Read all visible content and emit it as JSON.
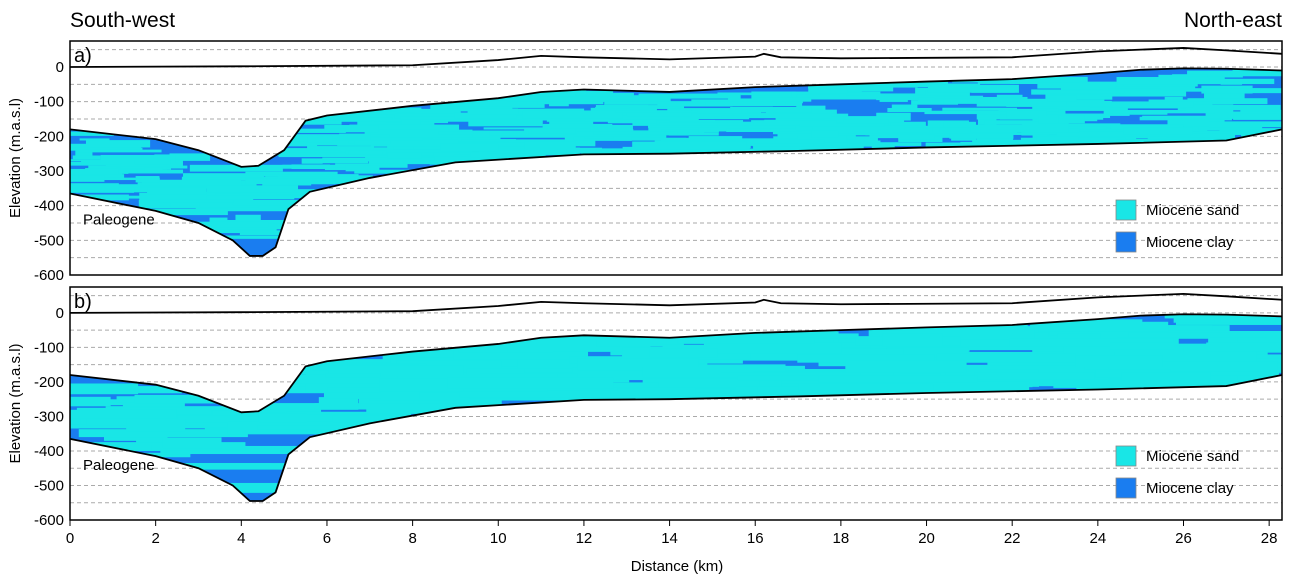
{
  "header": {
    "left": "South-west",
    "right": "North-east"
  },
  "colors": {
    "sand": "#19e6e6",
    "clay": "#1a7df0",
    "line": "#000000",
    "grid": "#aaaaaa"
  },
  "chart_data": [
    {
      "type": "area",
      "panel_label": "a)",
      "xlabel": "Distance (km)",
      "ylabel": "Elevation (m.a.s.l)",
      "xlim": [
        0,
        28.3
      ],
      "ylim": [
        -600,
        75
      ],
      "xticks": [
        0,
        2,
        4,
        6,
        8,
        10,
        12,
        14,
        16,
        18,
        20,
        22,
        24,
        26,
        28
      ],
      "yticks": [
        0,
        -100,
        -200,
        -300,
        -400,
        -500,
        -600
      ],
      "grid": true,
      "legend": {
        "placement": "lower-right",
        "entries": [
          "Miocene sand",
          "Miocene clay"
        ]
      },
      "annotations": [
        "Paleogene"
      ],
      "surface": [
        [
          0,
          0
        ],
        [
          4,
          2
        ],
        [
          8,
          5
        ],
        [
          10,
          20
        ],
        [
          11,
          32
        ],
        [
          12,
          28
        ],
        [
          14,
          22
        ],
        [
          16,
          30
        ],
        [
          16.2,
          38
        ],
        [
          16.6,
          28
        ],
        [
          18,
          25
        ],
        [
          22,
          28
        ],
        [
          24,
          45
        ],
        [
          26,
          55
        ],
        [
          27,
          48
        ],
        [
          28.3,
          38
        ]
      ],
      "miocene_top": [
        [
          0,
          -180
        ],
        [
          2,
          -208
        ],
        [
          3,
          -240
        ],
        [
          4,
          -288
        ],
        [
          4.4,
          -285
        ],
        [
          5,
          -240
        ],
        [
          5.5,
          -155
        ],
        [
          6,
          -140
        ],
        [
          8,
          -112
        ],
        [
          10,
          -90
        ],
        [
          11,
          -72
        ],
        [
          12,
          -65
        ],
        [
          14,
          -72
        ],
        [
          16,
          -58
        ],
        [
          18,
          -50
        ],
        [
          20,
          -42
        ],
        [
          22,
          -35
        ],
        [
          24,
          -18
        ],
        [
          25,
          -8
        ],
        [
          26,
          -4
        ],
        [
          27,
          -5
        ],
        [
          28.3,
          -10
        ]
      ],
      "miocene_base": [
        [
          0,
          -365
        ],
        [
          2,
          -415
        ],
        [
          3,
          -450
        ],
        [
          3.8,
          -500
        ],
        [
          4.2,
          -545
        ],
        [
          4.5,
          -545
        ],
        [
          4.8,
          -520
        ],
        [
          5.1,
          -410
        ],
        [
          5.6,
          -360
        ],
        [
          7,
          -320
        ],
        [
          9,
          -275
        ],
        [
          12,
          -252
        ],
        [
          14,
          -250
        ],
        [
          17,
          -242
        ],
        [
          20,
          -232
        ],
        [
          24,
          -222
        ],
        [
          27,
          -212
        ],
        [
          28.3,
          -180
        ]
      ]
    },
    {
      "type": "area",
      "panel_label": "b)",
      "xlabel": "Distance (km)",
      "ylabel": "Elevation (m.a.s.l)",
      "xlim": [
        0,
        28.3
      ],
      "ylim": [
        -600,
        75
      ],
      "xticks": [
        0,
        2,
        4,
        6,
        8,
        10,
        12,
        14,
        16,
        18,
        20,
        22,
        24,
        26,
        28
      ],
      "yticks": [
        0,
        -100,
        -200,
        -300,
        -400,
        -500,
        -600
      ],
      "grid": true,
      "legend": {
        "placement": "lower-right",
        "entries": [
          "Miocene sand",
          "Miocene clay"
        ]
      },
      "annotations": [
        "Paleogene"
      ],
      "surface": [
        [
          0,
          0
        ],
        [
          4,
          2
        ],
        [
          8,
          5
        ],
        [
          10,
          20
        ],
        [
          11,
          32
        ],
        [
          12,
          28
        ],
        [
          14,
          22
        ],
        [
          16,
          30
        ],
        [
          16.2,
          38
        ],
        [
          16.6,
          28
        ],
        [
          18,
          25
        ],
        [
          22,
          28
        ],
        [
          24,
          45
        ],
        [
          26,
          55
        ],
        [
          27,
          48
        ],
        [
          28.3,
          38
        ]
      ],
      "miocene_top": [
        [
          0,
          -180
        ],
        [
          2,
          -208
        ],
        [
          3,
          -240
        ],
        [
          4,
          -288
        ],
        [
          4.4,
          -285
        ],
        [
          5,
          -240
        ],
        [
          5.5,
          -155
        ],
        [
          6,
          -140
        ],
        [
          8,
          -112
        ],
        [
          10,
          -90
        ],
        [
          11,
          -72
        ],
        [
          12,
          -65
        ],
        [
          14,
          -72
        ],
        [
          16,
          -58
        ],
        [
          18,
          -50
        ],
        [
          20,
          -42
        ],
        [
          22,
          -35
        ],
        [
          24,
          -18
        ],
        [
          25,
          -8
        ],
        [
          26,
          -4
        ],
        [
          27,
          -5
        ],
        [
          28.3,
          -10
        ]
      ],
      "miocene_base": [
        [
          0,
          -365
        ],
        [
          2,
          -415
        ],
        [
          3,
          -450
        ],
        [
          3.8,
          -500
        ],
        [
          4.2,
          -545
        ],
        [
          4.5,
          -545
        ],
        [
          4.8,
          -520
        ],
        [
          5.1,
          -410
        ],
        [
          5.6,
          -360
        ],
        [
          7,
          -320
        ],
        [
          9,
          -275
        ],
        [
          12,
          -252
        ],
        [
          14,
          -250
        ],
        [
          17,
          -242
        ],
        [
          20,
          -232
        ],
        [
          24,
          -222
        ],
        [
          27,
          -212
        ],
        [
          28.3,
          -180
        ]
      ]
    }
  ]
}
